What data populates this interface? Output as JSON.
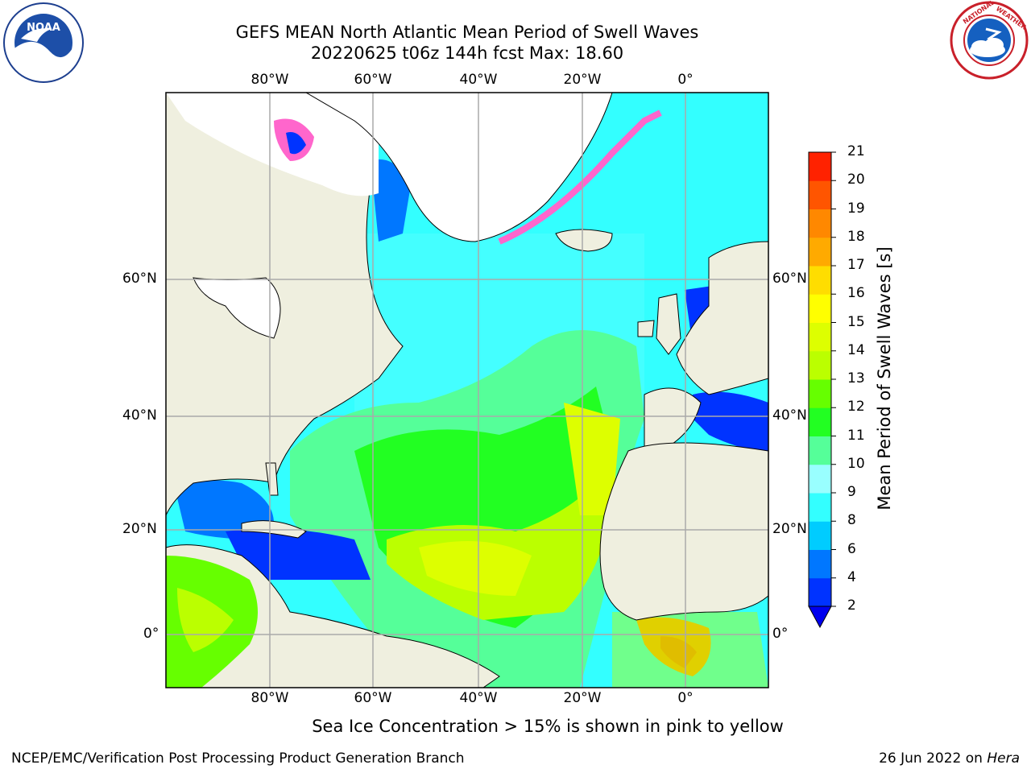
{
  "title_line1": "GEFS MEAN North Atlantic Mean Period of Swell Waves",
  "title_line2": "20220625 t06z 144h fcst   Max: 18.60",
  "lon_labels": [
    "80°W",
    "60°W",
    "40°W",
    "20°W",
    "0°"
  ],
  "lat_labels": [
    "60°N",
    "40°N",
    "20°N",
    "0°"
  ],
  "colorbar": {
    "label": "Mean Period of Swell Waves [s]",
    "ticks": [
      "2",
      "4",
      "6",
      "8",
      "9",
      "10",
      "11",
      "12",
      "13",
      "14",
      "15",
      "16",
      "17",
      "18",
      "19",
      "20",
      "21"
    ],
    "colors": [
      "#0033ff",
      "#0077ff",
      "#00ccff",
      "#33ffff",
      "#99ffff",
      "#55ff99",
      "#22ff22",
      "#66ff00",
      "#bbff00",
      "#ddff00",
      "#ffff00",
      "#ffdd00",
      "#ffaa00",
      "#ff8800",
      "#ff5500",
      "#ff2200"
    ],
    "extend_color": "#0000ee"
  },
  "logos": {
    "left": "noaa-logo",
    "right": "national-weather-service-logo"
  },
  "note": "Sea Ice Concentration > 15% is shown in pink to yellow",
  "footer_left": "NCEP/EMC/Verification Post Processing Product Generation Branch",
  "footer_date": "26 Jun 2022 on",
  "footer_machine": "Hera"
}
